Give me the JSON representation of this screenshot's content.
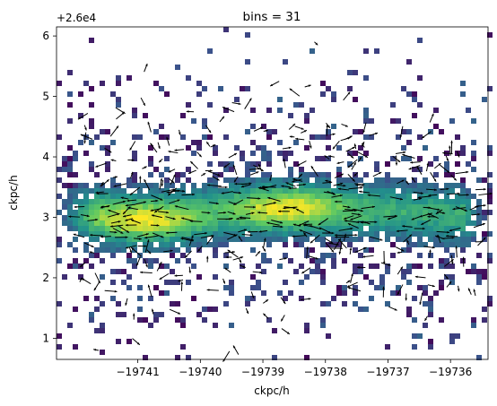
{
  "chart_data": {
    "type": "heatmap",
    "title": "bins = 31",
    "xlabel": "ckpc/h",
    "ylabel": "ckpc/h",
    "y_offset_label": "+2.6e4",
    "y_offset": 26000,
    "xlim": [
      -19742.3,
      -19735.4
    ],
    "ylim": [
      26000.65,
      26006.15
    ],
    "x_ticks": [
      -19741,
      -19740,
      -19739,
      -19738,
      -19737,
      -19736
    ],
    "x_tick_labels": [
      "−19741",
      "−19740",
      "−19739",
      "−19738",
      "−19737",
      "−19736"
    ],
    "y_ticks": [
      1,
      2,
      3,
      4,
      5,
      6
    ],
    "y_tick_labels": [
      "1",
      "2",
      "3",
      "4",
      "5",
      "6"
    ],
    "grid": false,
    "colormap": "viridis",
    "colors": {
      "low": "#440154",
      "mid": "#21918c",
      "high": "#fde725",
      "arrow": "#000000"
    },
    "density_model": {
      "ridge": [
        {
          "x": -19742.3,
          "y": 26003.15
        },
        {
          "x": -19741.0,
          "y": 26002.95
        },
        {
          "x": -19739.5,
          "y": 26003.1
        },
        {
          "x": -19738.5,
          "y": 26003.15
        },
        {
          "x": -19737.0,
          "y": 26003.1
        },
        {
          "x": -19735.4,
          "y": 26003.0
        }
      ],
      "peaks": [
        {
          "x": -19740.9,
          "y": 26002.95,
          "strength": 1.0
        },
        {
          "x": -19738.6,
          "y": 26003.15,
          "strength": 1.0
        }
      ],
      "core_half_width_y": 0.55,
      "extent_y": [
        26002.35,
        26003.7
      ]
    },
    "arrow_field": {
      "description": "quiver of velocity vectors over the binned region",
      "count": 420
    }
  }
}
